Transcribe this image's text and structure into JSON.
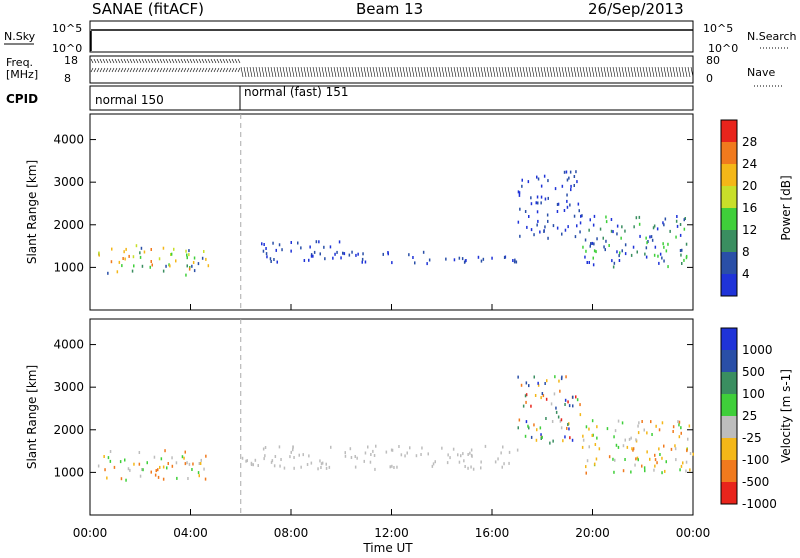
{
  "header": {
    "title": "SANAE (fitACF)",
    "beam": "Beam 13",
    "date": "26/Sep/2013"
  },
  "top_panel": {
    "left_label": "N.Sky",
    "right_label": "N.Search",
    "left_ticks": [
      "10^5",
      "10^0"
    ],
    "right_ticks": [
      "10^5",
      "10^0"
    ]
  },
  "freq_panel": {
    "left_label_1": "Freq.",
    "left_label_2": "[MHz]",
    "right_label": "Nave",
    "left_ticks": [
      "18",
      "8"
    ],
    "right_ticks": [
      "80",
      "0"
    ]
  },
  "cpid_panel": {
    "label": "CPID",
    "segments": [
      {
        "name": "normal 150",
        "start_hour": 0
      },
      {
        "name": "normal (fast) 151",
        "start_hour": 6
      }
    ]
  },
  "chart_data": [
    {
      "type": "scatter",
      "title": "Power",
      "xlabel": "Time UT",
      "ylabel": "Slant Range [km]",
      "xlim": [
        0,
        24
      ],
      "ylim": [
        0,
        4600
      ],
      "x_ticks": [
        "00:00",
        "04:00",
        "08:00",
        "12:00",
        "16:00",
        "20:00",
        "00:00"
      ],
      "y_ticks": [
        1000,
        2000,
        3000,
        4000
      ],
      "colorbar": {
        "label": "Power [dB]",
        "ticks": [
          "4",
          "8",
          "12",
          "16",
          "20",
          "24",
          "28"
        ],
        "colors": [
          "#1f33d8",
          "#2a4fa7",
          "#3a8e60",
          "#3fcf3a",
          "#c8df2a",
          "#f4b718",
          "#f07a1e",
          "#e8241c"
        ]
      },
      "regions": [
        {
          "x": [
            0.3,
            4.7
          ],
          "y": [
            850,
            1550
          ],
          "level": "high"
        },
        {
          "x": [
            6.0,
            10.0
          ],
          "y": [
            1150,
            1650
          ],
          "level": "low"
        },
        {
          "x": [
            10.0,
            17.0
          ],
          "y": [
            1100,
            1400
          ],
          "level": "low"
        },
        {
          "x": [
            17.0,
            19.5
          ],
          "y": [
            1700,
            3300
          ],
          "level": "low"
        },
        {
          "x": [
            19.5,
            24.0
          ],
          "y": [
            1000,
            2250
          ],
          "level": "mid"
        }
      ]
    },
    {
      "type": "scatter",
      "title": "Velocity",
      "xlabel": "Time UT",
      "ylabel": "Slant Range [km]",
      "xlim": [
        0,
        24
      ],
      "ylim": [
        0,
        4600
      ],
      "x_ticks": [
        "00:00",
        "04:00",
        "08:00",
        "12:00",
        "16:00",
        "20:00",
        "00:00"
      ],
      "y_ticks": [
        1000,
        2000,
        3000,
        4000
      ],
      "colorbar": {
        "label": "Velocity [m s-1]",
        "ticks": [
          "1000",
          "500",
          "100",
          "25",
          "-25",
          "-100",
          "-500",
          "-1000"
        ],
        "colors": [
          "#1f33d8",
          "#2a4fa7",
          "#3a8e60",
          "#3fcf3a",
          "#bdbdbd",
          "#f4b718",
          "#f07a1e",
          "#e8241c"
        ]
      },
      "regions": [
        {
          "x": [
            0.3,
            4.7
          ],
          "y": [
            850,
            1550
          ],
          "level": "orange"
        },
        {
          "x": [
            6.0,
            17.0
          ],
          "y": [
            1100,
            1650
          ],
          "level": "grey"
        },
        {
          "x": [
            17.0,
            19.5
          ],
          "y": [
            1700,
            3300
          ],
          "level": "mixed"
        },
        {
          "x": [
            19.5,
            24.0
          ],
          "y": [
            1000,
            2250
          ],
          "level": "orange"
        }
      ]
    }
  ]
}
